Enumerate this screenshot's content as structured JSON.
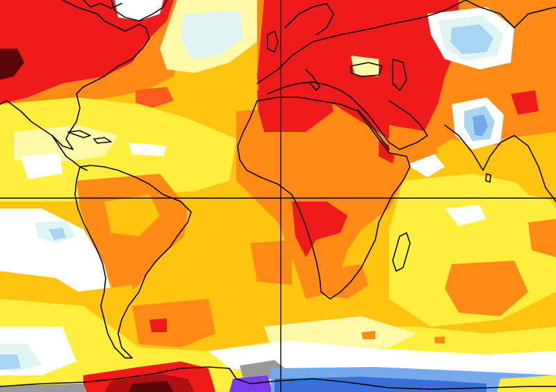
{
  "map": {
    "type": "temperature-anomaly-map",
    "projection": "equirectangular",
    "center_meridian_lon": 0,
    "reference_lines": [
      "equator",
      "prime-meridian"
    ],
    "palette": {
      "deep_blue": "#3a6fd8",
      "blue": "#74a9ec",
      "light_blue": "#a8d6f2",
      "pale_cyan": "#dff5f3",
      "white": "#ffffff",
      "pale_yellow": "#fff9a8",
      "yellow": "#ffef3c",
      "gold": "#ffc40f",
      "orange": "#ff8a16",
      "red_orange": "#ff5a1f",
      "red": "#ef1b1b",
      "dark_red": "#b01010",
      "maroon": "#5a0606",
      "purple": "#7a3cf0",
      "gray_missing": "#9a9a9a"
    },
    "coastline_color": "#000000",
    "reference_line_color": "#000000"
  }
}
